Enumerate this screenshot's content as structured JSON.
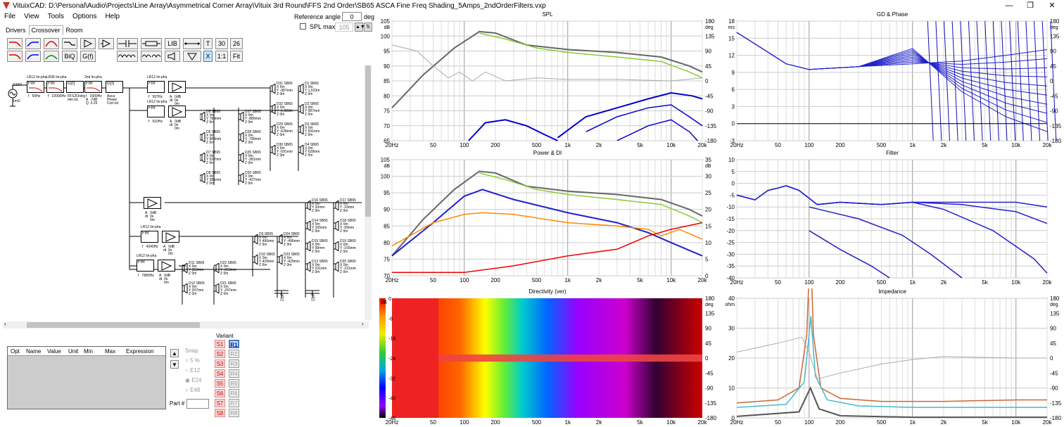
{
  "titlebar": {
    "title": "VituixCAD: D:\\Personal\\Audio\\Projects\\Line Array\\Asymmetrical Corner Array\\Vituix 3rd Round\\FFS 2nd Order\\SB65 ASCA Fine Freq Shading_5Amps_2ndOrderFilters.vxp",
    "minimize": "—",
    "restore": "❐",
    "close": "✕"
  },
  "menu": [
    "File",
    "View",
    "Tools",
    "Options",
    "Help"
  ],
  "reference": {
    "angle_label": "Reference angle",
    "angle_value": "0",
    "angle_unit": "deg hor",
    "spl_max_label": "SPL max",
    "spl_max_value": "105"
  },
  "tabs": [
    {
      "label": "Drivers",
      "active": false
    },
    {
      "label": "Crossover",
      "active": true
    },
    {
      "label": "Room",
      "active": false
    }
  ],
  "toolbar": {
    "lib": "LIB",
    "t": "T",
    "n30": "30",
    "n26": "26",
    "biq": "BiQ",
    "gf": "G(f)",
    "x": "X",
    "one": "1:1",
    "fit": "Fit"
  },
  "schematic": {
    "source": [
      "2.83V",
      "1mΩ"
    ],
    "chain1": [
      {
        "head": "LR12 lin-pha",
        "type": "FIR",
        "params": "f   50Hz"
      },
      {
        "head": "LR36 lin-pha",
        "type": "FIR",
        "params": "f   22000Hz"
      },
      {
        "head": "",
        "type": "G(f)",
        "params": "FFS2Ordrg\nmin.txt"
      },
      {
        "head": "2nd lin-pha",
        "type": "FIR",
        "params": "f   1500Hz\nA  -7dB\nQ  0.25"
      },
      {
        "head": "",
        "type": "G(f)",
        "params": "Asca\nPhase\nCorr.txt"
      }
    ],
    "branches": [
      {
        "filter": "LR12 lin-pha",
        "f": "f   507Hz",
        "gain": "A   0dB\ndt  0s\n     0m"
      },
      {
        "filter": "LR12 lin-pha",
        "f": "f   910Hz",
        "gain": "A   0dB\ndt  0s\n     0m"
      },
      {
        "filter": "",
        "f": "",
        "gain": "A   0dB\ndt  0s\n     0m"
      },
      {
        "filter": "LR12 lin-pha",
        "f": "f   4240Hz",
        "gain": "A   0dB\ndt  0s\n     0m"
      },
      {
        "filter": "LR12 lin-pha",
        "f": "f   7880Hz",
        "gain": "A   0dB\ndt  0s\n     0m"
      }
    ],
    "drivers": [
      {
        "name": "D31 SB65",
        "p": "X 0m\nY -987mm\nZ 0m"
      },
      {
        "name": "D1 SB65",
        "p": "X 0m\nY 1,023m\nZ 0m"
      },
      {
        "name": "D32 SB65",
        "p": "X 0m\nY -1,023m\nZ 0m"
      },
      {
        "name": "D2 SB65",
        "p": "X 0m\nY 987mm\nZ 0m"
      },
      {
        "name": "D29 SB65",
        "p": "X 0m\nY -628mm\nZ 0m"
      },
      {
        "name": "D3 SB65",
        "p": "X 0m\nY 591mm\nZ 0m"
      },
      {
        "name": "D30 SB65",
        "p": "X 0m\nY -591mm\nZ 0m"
      },
      {
        "name": "D4 SB65",
        "p": "X 0m\nY 628mm\nZ 0m"
      },
      {
        "name": "D5 SB65",
        "p": "X 0m\nY 789mm\nZ 0m"
      },
      {
        "name": "D27 SB65",
        "p": "X 0m\nY -880mm\nZ 0m"
      },
      {
        "name": "D6 SB65",
        "p": "X 0m\nY 880mm\nZ 0m"
      },
      {
        "name": "D28 SB65",
        "p": "X 0m\nY -789mm\nZ 0m"
      },
      {
        "name": "D7 SB65",
        "p": "X 0m\nY 537mm\nZ 0m"
      },
      {
        "name": "D25 SB65",
        "p": "X 0m\nY -381mm\nZ 0m"
      },
      {
        "name": "D8 SB65",
        "p": "X 0m\nY 381mm\nZ 0m"
      },
      {
        "name": "D26 SB65",
        "p": "X 0m\nY -427mm\nZ 0m"
      },
      {
        "name": "D16 SB65",
        "p": "X 0m\nY 33mm\nZ 0m"
      },
      {
        "name": "D17 SB65",
        "p": "X 0m\nY -33mm\nZ 0m"
      },
      {
        "name": "D14 SB65",
        "p": "X 0m\nY 165mm\nZ 0m"
      },
      {
        "name": "D18 SB65",
        "p": "X 0m\nY -99mm\nZ 0m"
      },
      {
        "name": "D15 SB65",
        "p": "X 0m\nY 99mm\nZ 0m"
      },
      {
        "name": "D19 SB65",
        "p": "X 0m\nY -165mm\nZ 0m"
      },
      {
        "name": "D13 SB65",
        "p": "X 0m\nY 231mm\nZ 0m"
      },
      {
        "name": "D20 SB65",
        "p": "X 0m\nY -231mm\nZ 0m"
      },
      {
        "name": "D9 SB65",
        "p": "X 0m\nY 496mm\nZ 0m"
      },
      {
        "name": "D24 SB65",
        "p": "X 0m\nY -496mm\nZ 0m"
      },
      {
        "name": "D10 SB65",
        "p": "X 0m\nY 429mm\nZ 0m"
      },
      {
        "name": "D23 SB65",
        "p": "X 0m\nY -429mm\nZ 0m"
      },
      {
        "name": "D11 SB65",
        "p": "X 0m\nY 363mm\nZ 0m"
      },
      {
        "name": "D22 SB65",
        "p": "X 0m\nY -363mm\nZ 0m"
      },
      {
        "name": "D12 SB65",
        "p": "X 0m\nY 297mm\nZ 0m"
      },
      {
        "name": "D21 SB65",
        "p": "X 0m\nY -297mm\nZ 0m"
      }
    ],
    "caps": [
      "22μF",
      "22μF"
    ]
  },
  "parts_table": {
    "columns": [
      "Opt",
      "Name",
      "Value",
      "Unit",
      "Min",
      "Max",
      "Expression"
    ]
  },
  "snap": {
    "label": "Snap",
    "options": [
      "5 %",
      "E12",
      "E24",
      "E48"
    ],
    "selected": "E24"
  },
  "variant": {
    "label": "Variant",
    "s": [
      "S1",
      "S2",
      "S3",
      "S4",
      "S5",
      "S6",
      "S7",
      "S8"
    ],
    "r": [
      "R1",
      "R2",
      "R3",
      "R4",
      "R5",
      "R6",
      "R7",
      "R8"
    ]
  },
  "part_label": "Part #",
  "charts": {
    "spl": {
      "title": "SPL",
      "y_unit": "dB",
      "y2_unit": "deg",
      "yticks": [
        "105",
        "100",
        "95",
        "90",
        "85",
        "80",
        "75",
        "70",
        "65"
      ],
      "y2ticks": [
        "180",
        "135",
        "90",
        "45",
        "0",
        "-45",
        "-90",
        "-135",
        "-180"
      ],
      "xticks": [
        "20Hz",
        "50",
        "100",
        "200",
        "500",
        "1k",
        "2k",
        "5k",
        "10k",
        "20k"
      ]
    },
    "gd": {
      "title": "GD & Phase",
      "y_unit": "ms",
      "y2_unit": "deg",
      "yticks": [
        "18",
        "15",
        "12",
        "9",
        "6",
        "3",
        "0",
        "-3"
      ],
      "y2ticks": [
        "180",
        "135",
        "90",
        "45",
        "0",
        "-45",
        "-90",
        "-135",
        "-180"
      ],
      "xticks": [
        "20Hz",
        "50",
        "100",
        "200",
        "500",
        "1k",
        "2k",
        "5k",
        "10k",
        "20k"
      ]
    },
    "power": {
      "title": "Power & DI",
      "y_unit": "dB",
      "y2_unit": "dB",
      "yticks": [
        "105",
        "100",
        "95",
        "90",
        "85",
        "80",
        "75",
        "70"
      ],
      "y2ticks": [
        "35",
        "30",
        "25",
        "20",
        "15",
        "10",
        "5",
        "0"
      ],
      "xticks": [
        "20Hz",
        "50",
        "100",
        "200",
        "500",
        "1k",
        "2k",
        "5k",
        "10k",
        "20k"
      ]
    },
    "filter": {
      "title": "Filter",
      "yticks": [
        "10",
        "5",
        "0",
        "-5",
        "-10",
        "-15",
        "-20",
        "-25",
        "-30",
        "-35",
        "-40"
      ],
      "xticks": [
        "20Hz",
        "50",
        "100",
        "200",
        "500",
        "1k",
        "2k",
        "5k",
        "10k",
        "20k"
      ]
    },
    "directivity": {
      "title": "Directivity (ver)",
      "y_unit": "dB",
      "y2_unit": "deg",
      "scale": [
        "0",
        "-8",
        "-16",
        "-24",
        "-32",
        "-40",
        "-48"
      ],
      "y2ticks": [
        "180",
        "135",
        "90",
        "45",
        "0",
        "-45",
        "-90",
        "-135",
        "-180"
      ],
      "xticks": [
        "20Hz",
        "50",
        "100",
        "200",
        "500",
        "1k",
        "2k",
        "5k",
        "10k",
        "20k"
      ]
    },
    "impedance": {
      "title": "Impedance",
      "y_unit": "ohm",
      "y2_unit": "deg",
      "yticks": [
        "40",
        "30",
        "20",
        "10",
        "0"
      ],
      "y2ticks": [
        "180",
        "135",
        "90",
        "45",
        "0",
        "-45",
        "-90",
        "-135",
        "-180"
      ],
      "xticks": [
        "20Hz",
        "50",
        "100",
        "200",
        "500",
        "1k",
        "2k",
        "5k",
        "10k",
        "20k"
      ]
    }
  }
}
